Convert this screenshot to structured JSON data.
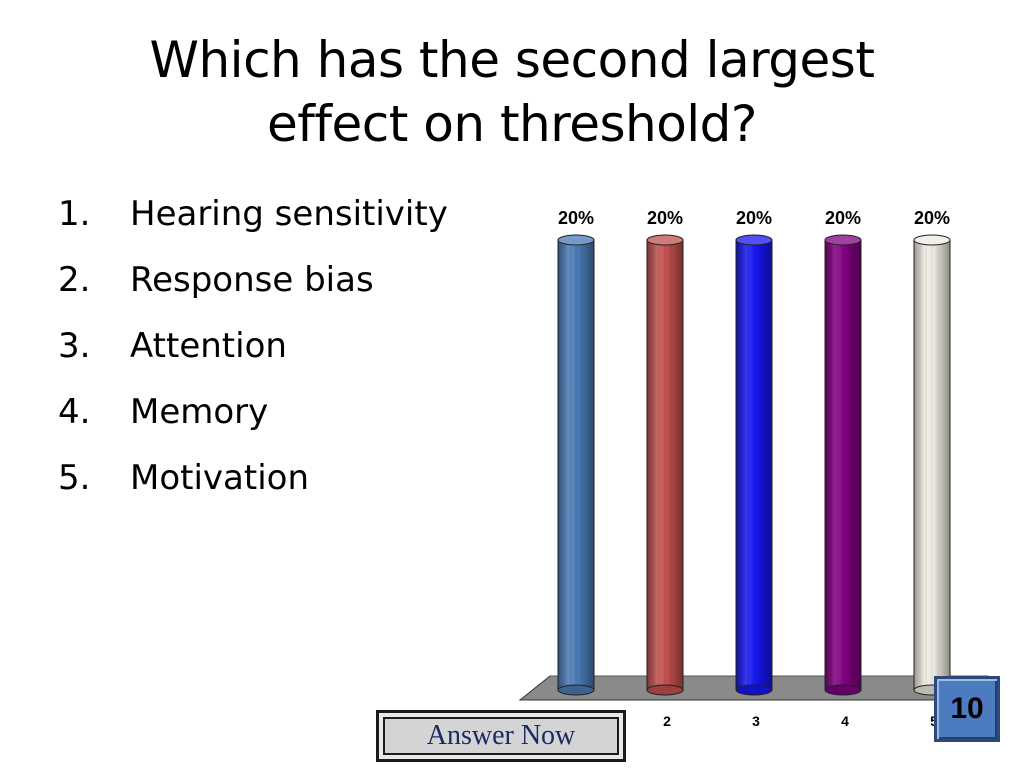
{
  "slide": {
    "title_line1": "Which has the second largest",
    "title_line2": "effect on threshold?"
  },
  "options": [
    {
      "num": "1.",
      "label": "Hearing sensitivity"
    },
    {
      "num": "2.",
      "label": "Response bias"
    },
    {
      "num": "3.",
      "label": "Attention"
    },
    {
      "num": "4.",
      "label": "Memory"
    },
    {
      "num": "5.",
      "label": "Motivation"
    }
  ],
  "chart_data": {
    "type": "bar",
    "categories": [
      "1",
      "2",
      "3",
      "4",
      "5"
    ],
    "values": [
      20,
      20,
      20,
      20,
      20
    ],
    "data_labels": [
      "20%",
      "20%",
      "20%",
      "20%",
      "20%"
    ],
    "ylim": [
      0,
      20
    ],
    "grid": false,
    "colors": [
      "#4a7ab5",
      "#c0504d",
      "#1616f0",
      "#800080",
      "#ece9df"
    ]
  },
  "answer_button": {
    "label": "Answer Now"
  },
  "countdown": {
    "value": "10"
  }
}
